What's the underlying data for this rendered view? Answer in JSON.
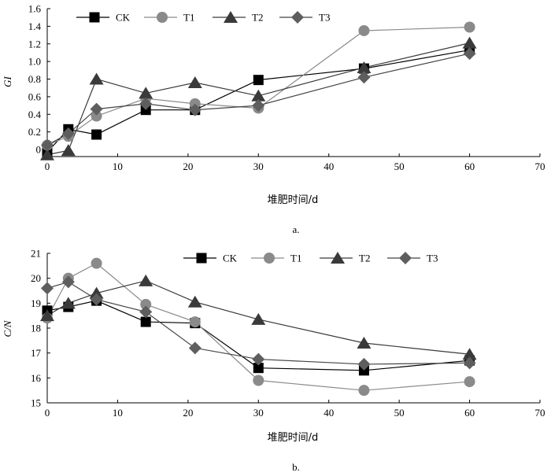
{
  "chart_data": [
    {
      "type": "line",
      "ylabel": "GI",
      "xlabel": "堆肥时间/d",
      "caption": "a.",
      "xlim": [
        0,
        70
      ],
      "ylim": [
        -0.08,
        1.6
      ],
      "xticks": [
        0,
        10,
        20,
        30,
        40,
        50,
        60,
        70
      ],
      "yticks": [
        0,
        0.2,
        0.4,
        0.6,
        0.8,
        1.0,
        1.2,
        1.4,
        1.6
      ],
      "ytick_labels": [
        "0",
        "0.2",
        "0.4",
        "0.6",
        "0.8",
        "1.0",
        "1.2",
        "1.4",
        "1.6"
      ],
      "x": [
        0,
        3,
        7,
        14,
        21,
        30,
        45,
        60
      ],
      "series": [
        {
          "name": "CK",
          "values": [
            -0.03,
            0.23,
            0.17,
            0.45,
            0.45,
            0.79,
            0.92,
            1.13
          ]
        },
        {
          "name": "T1",
          "values": [
            0.05,
            0.15,
            0.38,
            0.58,
            0.52,
            0.47,
            1.35,
            1.39
          ]
        },
        {
          "name": "T2",
          "values": [
            -0.06,
            -0.01,
            0.8,
            0.64,
            0.76,
            0.61,
            0.93,
            1.21
          ]
        },
        {
          "name": "T3",
          "values": [
            0.05,
            0.18,
            0.46,
            0.52,
            0.45,
            0.5,
            0.82,
            1.09
          ]
        }
      ]
    },
    {
      "type": "line",
      "ylabel": "C/N",
      "xlabel": "堆肥时间/d",
      "caption": "b.",
      "xlim": [
        0,
        70
      ],
      "ylim": [
        15,
        21
      ],
      "xticks": [
        0,
        10,
        20,
        30,
        40,
        50,
        60,
        70
      ],
      "yticks": [
        15,
        16,
        17,
        18,
        19,
        20,
        21
      ],
      "ytick_labels": [
        "15",
        "16",
        "17",
        "18",
        "19",
        "20",
        "21"
      ],
      "x": [
        0,
        3,
        7,
        14,
        21,
        30,
        45,
        60
      ],
      "series": [
        {
          "name": "CK",
          "values": [
            18.7,
            18.85,
            19.1,
            18.25,
            18.2,
            16.4,
            16.3,
            16.7
          ]
        },
        {
          "name": "T1",
          "values": [
            18.4,
            20.0,
            20.6,
            18.95,
            18.25,
            15.9,
            15.5,
            15.85
          ]
        },
        {
          "name": "T2",
          "values": [
            18.5,
            19.0,
            19.4,
            19.9,
            19.05,
            18.35,
            17.4,
            16.95
          ]
        },
        {
          "name": "T3",
          "values": [
            19.6,
            19.85,
            19.15,
            18.65,
            17.2,
            16.75,
            16.55,
            16.6
          ]
        }
      ]
    }
  ],
  "styles": {
    "CK": {
      "marker": "square",
      "color": "#000000",
      "line": "#000000"
    },
    "T1": {
      "marker": "circle",
      "color": "#8a8a8a",
      "line": "#8a8a8a"
    },
    "T2": {
      "marker": "triangle",
      "color": "#3a3a3a",
      "line": "#3a3a3a"
    },
    "T3": {
      "marker": "diamond",
      "color": "#5e5e5e",
      "line": "#444444"
    }
  }
}
